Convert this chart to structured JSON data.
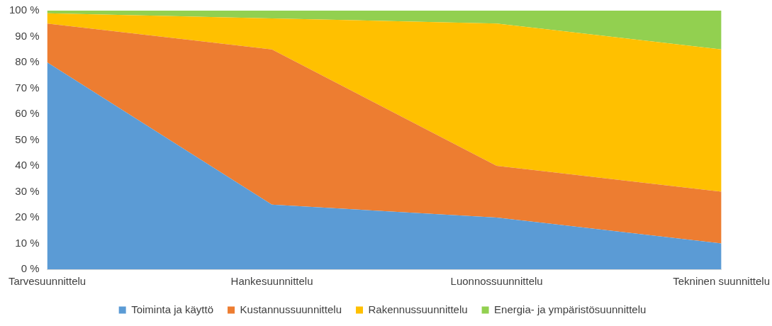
{
  "chart_data": {
    "type": "area",
    "stacked": true,
    "categories": [
      "Tarvesuunnittelu",
      "Hankesuunnittelu",
      "Luonnossuunnittelu",
      "Tekninen suunnittelu"
    ],
    "series": [
      {
        "name": "Toiminta ja käyttö",
        "color": "#5b9bd5",
        "values": [
          80,
          25,
          20,
          10
        ]
      },
      {
        "name": "Kustannussuunnittelu",
        "color": "#ed7d31",
        "values": [
          15,
          60,
          20,
          20
        ]
      },
      {
        "name": "Rakennussuunnittelu",
        "color": "#ffc000",
        "values": [
          4,
          12,
          55,
          55
        ]
      },
      {
        "name": "Energia- ja ympäristösuunnittelu",
        "color": "#92d050",
        "values": [
          1,
          3,
          5,
          15
        ]
      }
    ],
    "ylim": [
      0,
      100
    ],
    "yticks": [
      {
        "value": 0,
        "label": "0 %"
      },
      {
        "value": 10,
        "label": "10 %"
      },
      {
        "value": 20,
        "label": "20 %"
      },
      {
        "value": 30,
        "label": "30 %"
      },
      {
        "value": 40,
        "label": "40 %"
      },
      {
        "value": 50,
        "label": "50 %"
      },
      {
        "value": 60,
        "label": "60 %"
      },
      {
        "value": 70,
        "label": "70 %"
      },
      {
        "value": 80,
        "label": "80 %"
      },
      {
        "value": 90,
        "label": "90 %"
      },
      {
        "value": 100,
        "label": "100 %"
      }
    ],
    "grid": false,
    "legend": "bottom"
  }
}
